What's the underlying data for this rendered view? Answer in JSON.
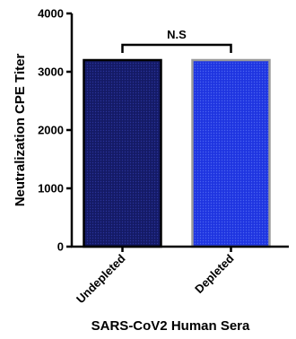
{
  "chart_data": {
    "type": "bar",
    "categories": [
      "Undepleted",
      "Depleted"
    ],
    "values": [
      3200,
      3200
    ],
    "ylabel": "Neutralization CPE Titer",
    "xlabel": "SARS-CoV2 Human Sera",
    "ylim": [
      0,
      4000
    ],
    "yticks": [
      0,
      1000,
      2000,
      3000,
      4000
    ],
    "grid": false,
    "legend": "none",
    "bar_fill_colors": [
      "#141a66",
      "#1f35e0"
    ],
    "bar_stroke_colors": [
      "#000000",
      "#9a9a9a"
    ],
    "significance": {
      "label": "N.S",
      "between": [
        "Undepleted",
        "Depleted"
      ]
    }
  }
}
